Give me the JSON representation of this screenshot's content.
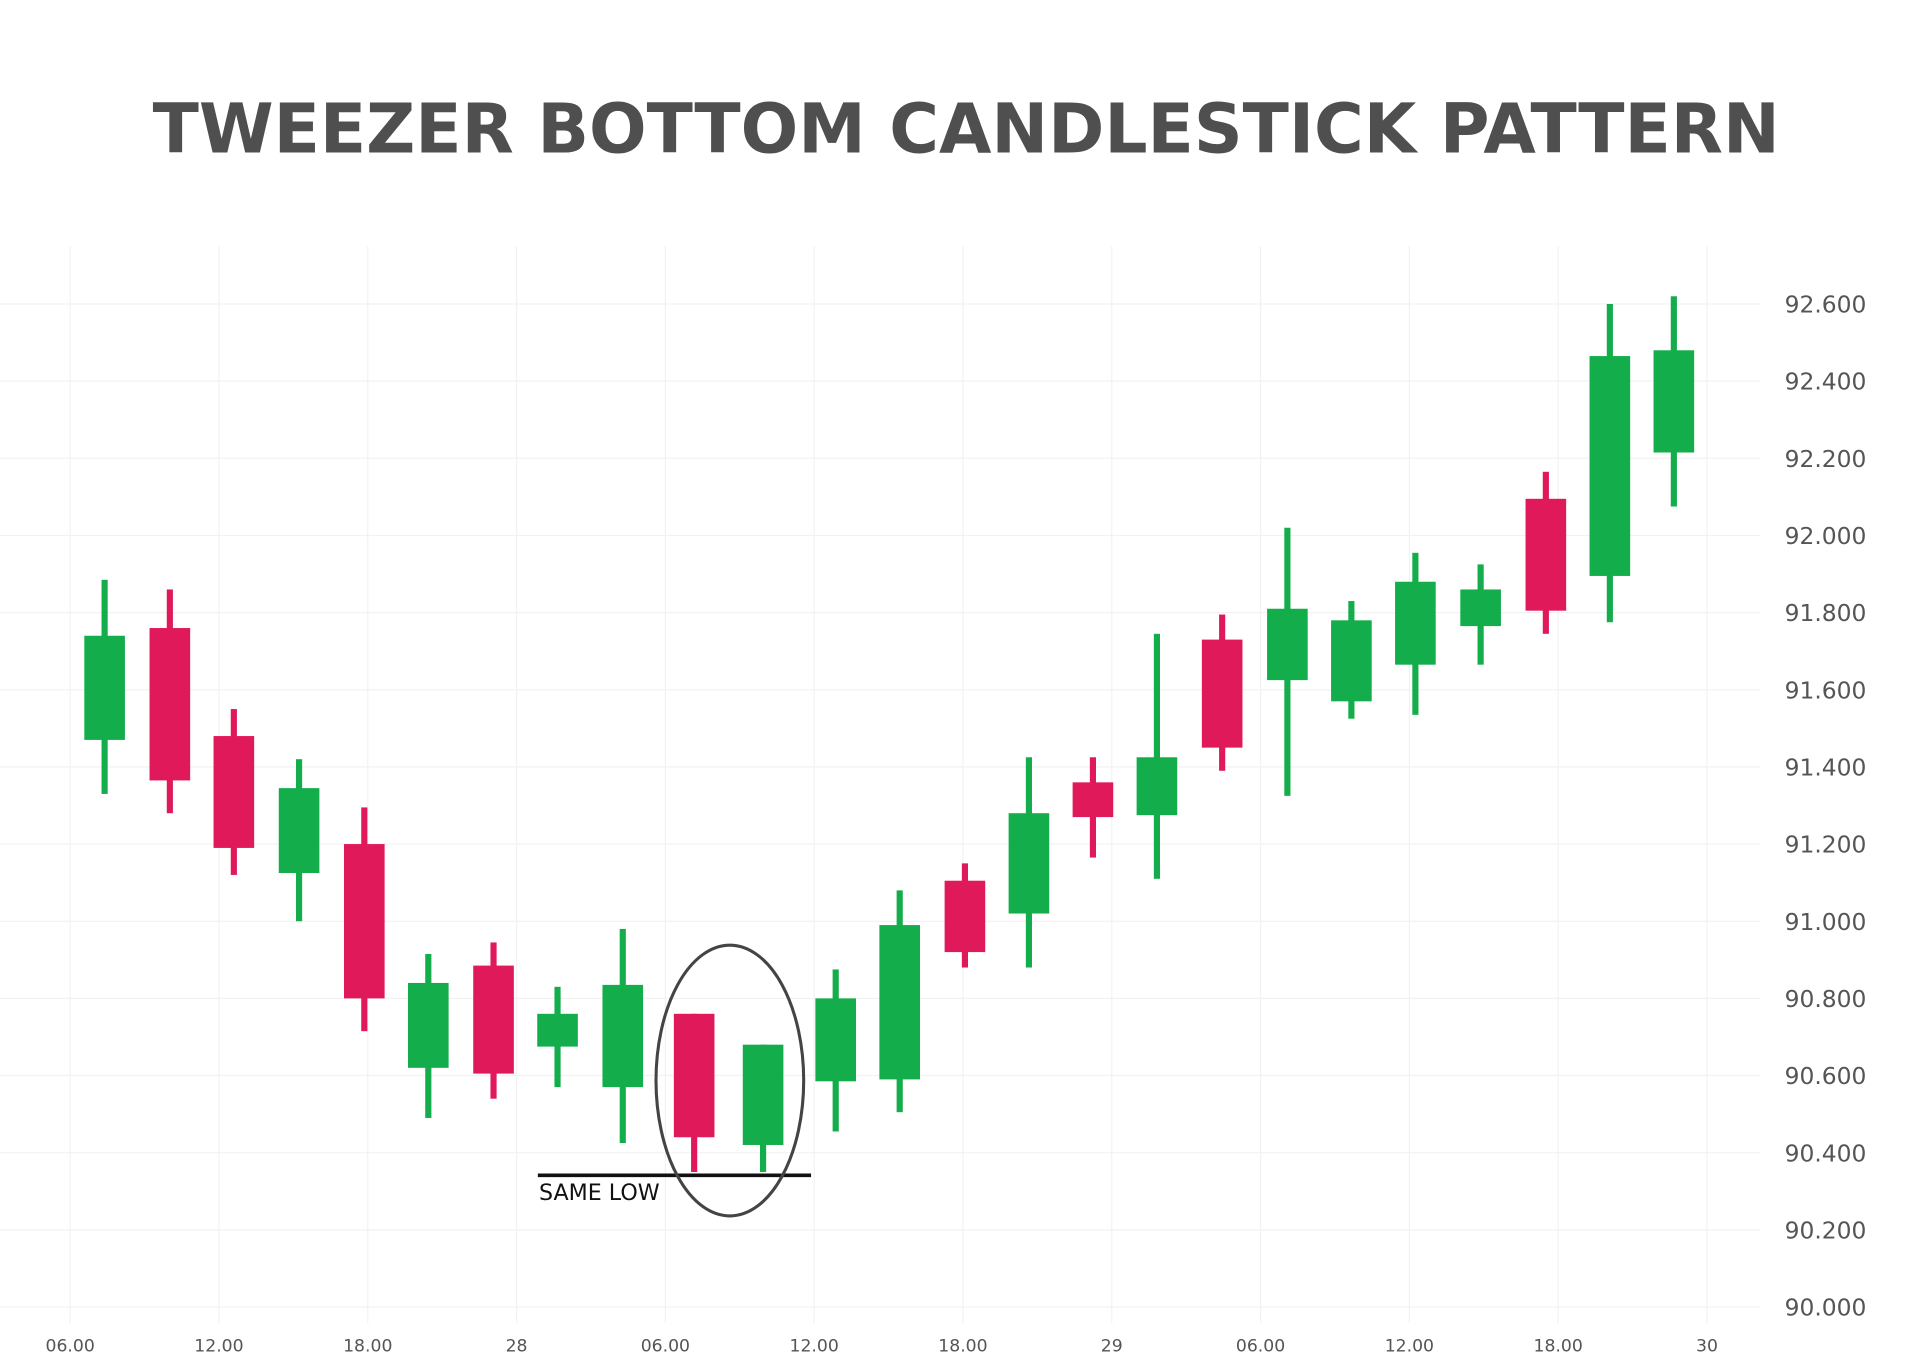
{
  "chart_data": {
    "type": "candlestick",
    "title": "TWEEZER BOTTOM CANDLESTICK PATTERN",
    "xlabel": "",
    "ylabel": "",
    "ylim": [
      90.0,
      92.6
    ],
    "grid": true,
    "y_ticks": [
      "92.600",
      "92.400",
      "92.200",
      "92.000",
      "91.800",
      "91.600",
      "91.400",
      "91.200",
      "91.000",
      "90.800",
      "90.600",
      "90.400",
      "90.200",
      "90.000"
    ],
    "x_ticks": [
      "06.00",
      "12.00",
      "18.00",
      "28",
      "06.00",
      "12.00",
      "18.00",
      "29",
      "06.00",
      "12.00",
      "18.00",
      "30"
    ],
    "colors": {
      "bullish": "#13ae4b",
      "bearish": "#e0195a",
      "text": "#4f4f4f",
      "grid": "#f2f2f2"
    },
    "candles": [
      {
        "open": 91.47,
        "high": 91.885,
        "low": 91.33,
        "close": 91.74
      },
      {
        "open": 91.76,
        "high": 91.86,
        "low": 91.28,
        "close": 91.365
      },
      {
        "open": 91.48,
        "high": 91.55,
        "low": 91.12,
        "close": 91.19
      },
      {
        "open": 91.125,
        "high": 91.42,
        "low": 91.0,
        "close": 91.345
      },
      {
        "open": 91.2,
        "high": 91.295,
        "low": 90.715,
        "close": 90.8
      },
      {
        "open": 90.62,
        "high": 90.915,
        "low": 90.49,
        "close": 90.84
      },
      {
        "open": 90.885,
        "high": 90.945,
        "low": 90.54,
        "close": 90.605
      },
      {
        "open": 90.675,
        "high": 90.83,
        "low": 90.57,
        "close": 90.76
      },
      {
        "open": 90.57,
        "high": 90.98,
        "low": 90.425,
        "close": 90.835
      },
      {
        "open": 90.76,
        "high": 90.76,
        "low": 90.35,
        "close": 90.44
      },
      {
        "open": 90.42,
        "high": 90.68,
        "low": 90.35,
        "close": 90.68
      },
      {
        "open": 90.585,
        "high": 90.875,
        "low": 90.455,
        "close": 90.8
      },
      {
        "open": 90.59,
        "high": 91.08,
        "low": 90.505,
        "close": 90.99
      },
      {
        "open": 91.105,
        "high": 91.15,
        "low": 90.88,
        "close": 90.92
      },
      {
        "open": 91.02,
        "high": 91.425,
        "low": 90.88,
        "close": 91.28
      },
      {
        "open": 91.36,
        "high": 91.425,
        "low": 91.165,
        "close": 91.27
      },
      {
        "open": 91.275,
        "high": 91.745,
        "low": 91.11,
        "close": 91.425
      },
      {
        "open": 91.73,
        "high": 91.795,
        "low": 91.39,
        "close": 91.45
      },
      {
        "open": 91.625,
        "high": 92.02,
        "low": 91.325,
        "close": 91.81
      },
      {
        "open": 91.57,
        "high": 91.83,
        "low": 91.525,
        "close": 91.78
      },
      {
        "open": 91.665,
        "high": 91.955,
        "low": 91.535,
        "close": 91.88
      },
      {
        "open": 91.765,
        "high": 91.925,
        "low": 91.665,
        "close": 91.86
      },
      {
        "open": 92.095,
        "high": 92.165,
        "low": 91.745,
        "close": 91.805
      },
      {
        "open": 91.895,
        "high": 92.6,
        "low": 91.775,
        "close": 92.465
      },
      {
        "open": 92.215,
        "high": 92.62,
        "low": 92.075,
        "close": 92.48
      }
    ],
    "annotations": [
      {
        "type": "horizontal-line",
        "label": "SAME LOW",
        "value": 90.35
      },
      {
        "type": "ellipse",
        "highlight_candles": [
          10,
          11
        ]
      }
    ]
  }
}
